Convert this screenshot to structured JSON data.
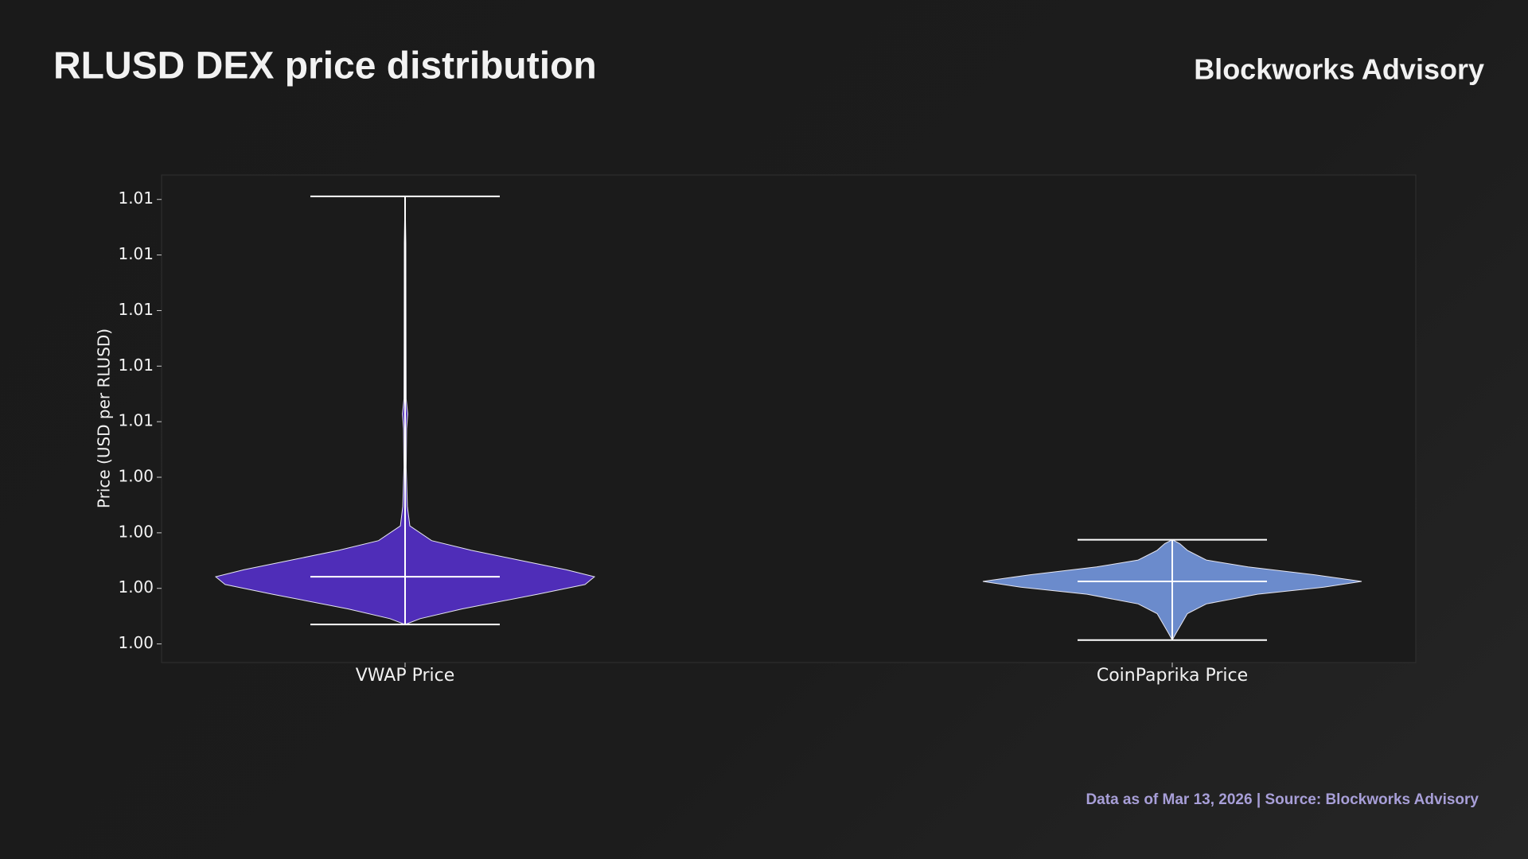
{
  "chart_data": {
    "type": "violin",
    "title": "RLUSD DEX price distribution",
    "brand": "Blockworks Advisory",
    "footer": "Data as of Mar 13, 2026 | Source: Blockworks Advisory",
    "y_label": "Price (USD per RLUSD)",
    "categories": [
      "VWAP Price",
      "CoinPaprika Price"
    ],
    "violins": [
      {
        "color": "#4f2db8",
        "min": 0.9987,
        "median": 1.00042,
        "max": 1.01411,
        "kde_y": [
          0.9987,
          0.99891,
          0.99926,
          0.99979,
          1.00014,
          1.00042,
          1.00067,
          1.00102,
          1.00137,
          1.00172,
          1.00225,
          1.00295,
          1.00435,
          1.00575,
          1.00628,
          1.00681,
          1.00891,
          1.01242,
          1.01411
        ],
        "kde_width": [
          0,
          0.08,
          0.3,
          0.7,
          0.95,
          1.0,
          0.85,
          0.6,
          0.35,
          0.14,
          0.025,
          0.012,
          0.006,
          0.008,
          0.014,
          0.006,
          0.005,
          0.004,
          0
        ]
      },
      {
        "color": "#6b8bcc",
        "min": 0.99814,
        "median": 1.00025,
        "max": 1.00175,
        "kde_y": [
          0.99814,
          0.99839,
          0.99874,
          0.99909,
          0.99944,
          0.99979,
          1.00004,
          1.00025,
          1.00049,
          1.00077,
          1.00102,
          1.00137,
          1.00161,
          1.00175
        ],
        "kde_width": [
          0,
          0.02,
          0.05,
          0.08,
          0.18,
          0.45,
          0.8,
          1.0,
          0.75,
          0.4,
          0.18,
          0.08,
          0.04,
          0
        ]
      }
    ],
    "ylim": [
      0.99733,
      1.01488
    ],
    "yticks": [
      {
        "value": 0.998,
        "label": "1.00"
      },
      {
        "value": 1.0,
        "label": "1.00"
      },
      {
        "value": 1.002,
        "label": "1.00"
      },
      {
        "value": 1.004,
        "label": "1.00"
      },
      {
        "value": 1.006,
        "label": "1.01"
      },
      {
        "value": 1.008,
        "label": "1.01"
      },
      {
        "value": 1.01,
        "label": "1.01"
      },
      {
        "value": 1.012,
        "label": "1.01"
      },
      {
        "value": 1.014,
        "label": "1.01"
      }
    ],
    "grid": false
  }
}
